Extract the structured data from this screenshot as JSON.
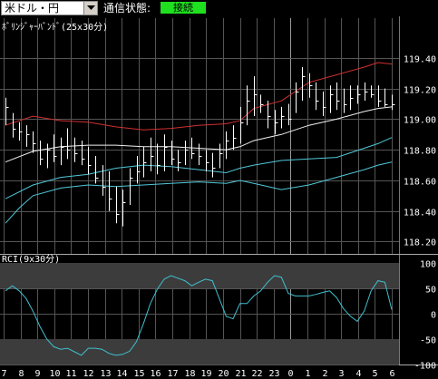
{
  "toolbar": {
    "pair": "米ドル・円",
    "connection_label": "通信状態:",
    "connection_status": "接続"
  },
  "colors": {
    "background": "#000000",
    "grid": "#555555",
    "upper_band": "#d03030",
    "middle_band": "#f0f0f0",
    "lower_bands": "#50c8d8",
    "price": "#ffffff",
    "rci": "#40c0d0",
    "rci_zone": "#3c3c3c",
    "status_ok": "#1fe01f"
  },
  "chart_data": [
    {
      "type": "line",
      "title": "ﾎﾞﾘﾝｼﾞｬｰﾊﾞﾝﾄﾞ(25x30分)",
      "ylim": [
        118.12,
        119.66
      ],
      "y_ticks": [
        "119.40",
        "119.20",
        "119.00",
        "118.80",
        "118.60",
        "118.40",
        "118.20"
      ],
      "x_ticks": [
        "7",
        "8",
        "9",
        "10",
        "11",
        "12",
        "13",
        "14",
        "15",
        "16",
        "17",
        "18",
        "19",
        "20",
        "21",
        "22",
        "23",
        "0",
        "1",
        "2",
        "3",
        "4",
        "5",
        "6"
      ],
      "price_bars": [
        [
          118.96,
          119.14,
          119.08
        ],
        [
          118.88,
          119.04,
          118.94
        ],
        [
          118.86,
          118.98,
          118.92
        ],
        [
          118.82,
          118.96,
          118.9
        ],
        [
          118.78,
          118.92,
          118.84
        ],
        [
          118.7,
          118.86,
          118.74
        ],
        [
          118.68,
          118.84,
          118.8
        ],
        [
          118.72,
          118.9,
          118.76
        ],
        [
          118.7,
          118.88,
          118.82
        ],
        [
          118.74,
          118.94,
          118.8
        ],
        [
          118.72,
          118.88,
          118.78
        ],
        [
          118.7,
          118.86,
          118.74
        ],
        [
          118.64,
          118.82,
          118.7
        ],
        [
          118.58,
          118.76,
          118.62
        ],
        [
          118.5,
          118.7,
          118.56
        ],
        [
          118.4,
          118.66,
          118.48
        ],
        [
          118.32,
          118.56,
          118.38
        ],
        [
          118.3,
          118.54,
          118.46
        ],
        [
          118.44,
          118.68,
          118.62
        ],
        [
          118.58,
          118.76,
          118.66
        ],
        [
          118.62,
          118.82,
          118.72
        ],
        [
          118.66,
          118.88,
          118.76
        ],
        [
          118.64,
          118.84,
          118.7
        ],
        [
          118.66,
          118.9,
          118.82
        ],
        [
          118.7,
          118.86,
          118.74
        ],
        [
          118.66,
          118.8,
          118.72
        ],
        [
          118.7,
          118.86,
          118.8
        ],
        [
          118.74,
          118.88,
          118.78
        ],
        [
          118.7,
          118.84,
          118.76
        ],
        [
          118.66,
          118.8,
          118.72
        ],
        [
          118.62,
          118.78,
          118.68
        ],
        [
          118.68,
          118.84,
          118.78
        ],
        [
          118.74,
          118.92,
          118.86
        ],
        [
          118.8,
          118.96,
          118.88
        ],
        [
          118.84,
          119.08,
          118.98
        ],
        [
          118.96,
          119.22,
          119.12
        ],
        [
          119.02,
          119.28,
          119.16
        ],
        [
          119.04,
          119.16,
          119.1
        ],
        [
          118.94,
          119.12,
          119.02
        ],
        [
          118.9,
          119.06,
          118.98
        ],
        [
          118.94,
          119.08,
          119.02
        ],
        [
          118.96,
          119.1,
          119.0
        ],
        [
          119.04,
          119.24,
          119.18
        ],
        [
          119.12,
          119.34,
          119.28
        ],
        [
          119.14,
          119.3,
          119.22
        ],
        [
          119.06,
          119.24,
          119.12
        ],
        [
          119.02,
          119.18,
          119.08
        ],
        [
          119.04,
          119.22,
          119.16
        ],
        [
          119.06,
          119.24,
          119.12
        ],
        [
          119.04,
          119.2,
          119.1
        ],
        [
          119.06,
          119.22,
          119.14
        ],
        [
          119.1,
          119.22,
          119.16
        ],
        [
          119.12,
          119.24,
          119.18
        ],
        [
          119.14,
          119.22,
          119.16
        ],
        [
          119.08,
          119.22,
          119.12
        ],
        [
          119.08,
          119.2,
          119.1
        ],
        [
          119.06,
          119.16,
          119.1
        ]
      ],
      "upper_band": [
        [
          0,
          118.96
        ],
        [
          4,
          119.02
        ],
        [
          8,
          118.99
        ],
        [
          12,
          118.98
        ],
        [
          16,
          118.95
        ],
        [
          20,
          118.93
        ],
        [
          24,
          118.94
        ],
        [
          28,
          118.96
        ],
        [
          32,
          118.97
        ],
        [
          34,
          118.99
        ],
        [
          36,
          119.07
        ],
        [
          40,
          119.12
        ],
        [
          44,
          119.24
        ],
        [
          48,
          119.29
        ],
        [
          52,
          119.34
        ],
        [
          54,
          119.37
        ],
        [
          56,
          119.36
        ]
      ],
      "middle_band": [
        [
          0,
          118.72
        ],
        [
          4,
          118.79
        ],
        [
          8,
          118.82
        ],
        [
          12,
          118.83
        ],
        [
          16,
          118.83
        ],
        [
          20,
          118.82
        ],
        [
          24,
          118.82
        ],
        [
          28,
          118.81
        ],
        [
          32,
          118.8
        ],
        [
          34,
          118.82
        ],
        [
          36,
          118.86
        ],
        [
          40,
          118.9
        ],
        [
          44,
          118.96
        ],
        [
          48,
          119.0
        ],
        [
          52,
          119.05
        ],
        [
          54,
          119.07
        ],
        [
          56,
          119.08
        ]
      ],
      "lower_band_1": [
        [
          0,
          118.48
        ],
        [
          4,
          118.57
        ],
        [
          8,
          118.62
        ],
        [
          12,
          118.64
        ],
        [
          16,
          118.68
        ],
        [
          20,
          118.7
        ],
        [
          24,
          118.69
        ],
        [
          28,
          118.67
        ],
        [
          32,
          118.65
        ],
        [
          34,
          118.68
        ],
        [
          36,
          118.7
        ],
        [
          40,
          118.73
        ],
        [
          44,
          118.74
        ],
        [
          48,
          118.75
        ],
        [
          52,
          118.81
        ],
        [
          54,
          118.84
        ],
        [
          56,
          118.88
        ]
      ],
      "lower_band_2": [
        [
          0,
          118.32
        ],
        [
          2,
          118.42
        ],
        [
          4,
          118.5
        ],
        [
          8,
          118.55
        ],
        [
          12,
          118.57
        ],
        [
          16,
          118.56
        ],
        [
          20,
          118.57
        ],
        [
          24,
          118.58
        ],
        [
          28,
          118.59
        ],
        [
          32,
          118.58
        ],
        [
          34,
          118.6
        ],
        [
          36,
          118.58
        ],
        [
          40,
          118.54
        ],
        [
          44,
          118.57
        ],
        [
          48,
          118.62
        ],
        [
          52,
          118.67
        ],
        [
          54,
          118.7
        ],
        [
          56,
          118.72
        ]
      ],
      "separator_at": "0"
    },
    {
      "type": "line",
      "title": "RCI(9x30分)",
      "ylim": [
        -100,
        100
      ],
      "y_ticks": [
        100,
        50,
        0,
        -50,
        -100
      ],
      "zones": [
        [
          50,
          100
        ],
        [
          -100,
          -50
        ]
      ],
      "series": [
        {
          "values": [
            [
              0,
              45
            ],
            [
              1,
              55
            ],
            [
              2,
              45
            ],
            [
              3,
              30
            ],
            [
              4,
              5
            ],
            [
              5,
              -25
            ],
            [
              6,
              -50
            ],
            [
              7,
              -65
            ],
            [
              8,
              -70
            ],
            [
              9,
              -68
            ],
            [
              10,
              -75
            ],
            [
              11,
              -82
            ],
            [
              12,
              -68
            ],
            [
              13,
              -68
            ],
            [
              14,
              -70
            ],
            [
              15,
              -78
            ],
            [
              16,
              -82
            ],
            [
              17,
              -80
            ],
            [
              18,
              -74
            ],
            [
              19,
              -55
            ],
            [
              20,
              -20
            ],
            [
              21,
              20
            ],
            [
              22,
              48
            ],
            [
              23,
              68
            ],
            [
              24,
              75
            ],
            [
              25,
              70
            ],
            [
              26,
              65
            ],
            [
              27,
              55
            ],
            [
              28,
              62
            ],
            [
              29,
              68
            ],
            [
              30,
              65
            ],
            [
              31,
              30
            ],
            [
              32,
              -5
            ],
            [
              33,
              -10
            ],
            [
              34,
              20
            ],
            [
              35,
              20
            ],
            [
              36,
              35
            ],
            [
              37,
              45
            ],
            [
              38,
              62
            ],
            [
              39,
              75
            ],
            [
              40,
              72
            ],
            [
              41,
              40
            ],
            [
              42,
              35
            ],
            [
              43,
              35
            ],
            [
              44,
              35
            ],
            [
              45,
              38
            ],
            [
              46,
              42
            ],
            [
              47,
              45
            ],
            [
              48,
              32
            ],
            [
              49,
              10
            ],
            [
              50,
              -5
            ],
            [
              51,
              -15
            ],
            [
              52,
              5
            ],
            [
              53,
              45
            ],
            [
              54,
              65
            ],
            [
              55,
              62
            ],
            [
              56,
              8
            ]
          ]
        }
      ]
    }
  ]
}
